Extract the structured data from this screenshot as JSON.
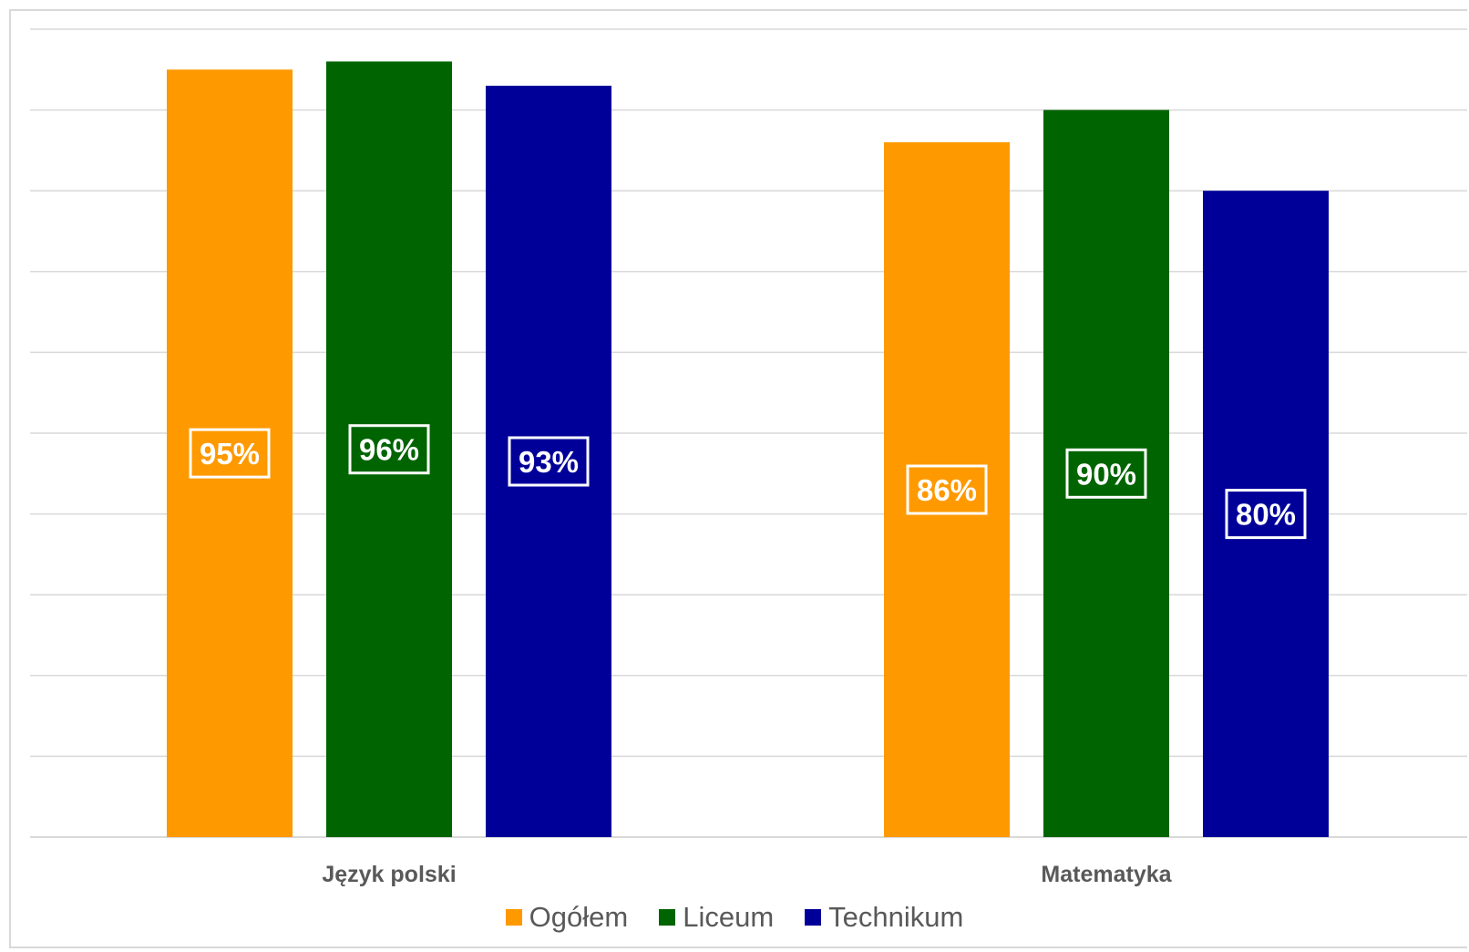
{
  "chart_data": {
    "type": "bar",
    "categories": [
      "Język polski",
      "Matematyka"
    ],
    "series": [
      {
        "name": "Ogółem",
        "values": [
          95,
          86
        ],
        "labels": [
          "95%",
          "86%"
        ],
        "color": "#ff9900"
      },
      {
        "name": "Liceum",
        "values": [
          96,
          90
        ],
        "labels": [
          "96%",
          "90%"
        ],
        "color": "#006400"
      },
      {
        "name": "Technikum",
        "values": [
          93,
          80
        ],
        "labels": [
          "93%",
          "80%"
        ],
        "color": "#000099"
      }
    ],
    "ylim": [
      0,
      100
    ],
    "grid": true,
    "legend_position": "bottom",
    "title": "",
    "xlabel": "",
    "ylabel": ""
  }
}
